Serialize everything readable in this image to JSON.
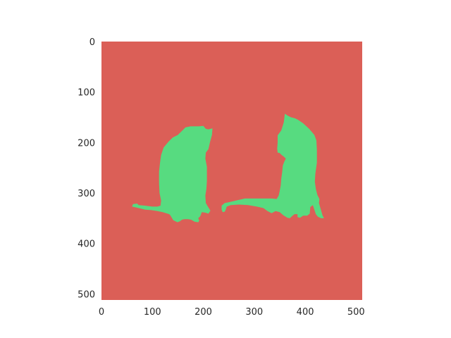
{
  "chart_data": {
    "type": "heatmap",
    "title": "",
    "xlabel": "",
    "ylabel": "",
    "xlim": [
      0,
      512
    ],
    "ylim": [
      512,
      0
    ],
    "x_ticks": [
      0,
      100,
      200,
      300,
      400,
      500
    ],
    "y_ticks": [
      0,
      100,
      200,
      300,
      400,
      500
    ],
    "grid": false,
    "legend": "none",
    "classes": [
      {
        "label": "background",
        "color": "#db5f57"
      },
      {
        "label": "cat",
        "color": "#57db80"
      }
    ],
    "regions": [
      {
        "class": "cat",
        "polygon": [
          [
            191,
            168
          ],
          [
            200,
            167
          ],
          [
            205,
            173
          ],
          [
            210,
            174
          ],
          [
            218,
            172
          ],
          [
            217,
            185
          ],
          [
            213,
            200
          ],
          [
            210,
            213
          ],
          [
            205,
            220
          ],
          [
            204,
            232
          ],
          [
            207,
            248
          ],
          [
            207,
            262
          ],
          [
            207,
            277
          ],
          [
            206,
            292
          ],
          [
            204,
            305
          ],
          [
            205,
            320
          ],
          [
            209,
            327
          ],
          [
            214,
            335
          ],
          [
            210,
            341
          ],
          [
            204,
            339
          ],
          [
            197,
            338
          ],
          [
            194,
            346
          ],
          [
            190,
            350
          ],
          [
            192,
            355
          ],
          [
            190,
            358
          ],
          [
            183,
            357
          ],
          [
            176,
            353
          ],
          [
            170,
            352
          ],
          [
            163,
            352
          ],
          [
            158,
            353
          ],
          [
            154,
            356
          ],
          [
            149,
            358
          ],
          [
            141,
            354
          ],
          [
            135,
            344
          ],
          [
            133,
            342
          ],
          [
            120,
            338
          ],
          [
            110,
            336
          ],
          [
            98,
            334
          ],
          [
            86,
            333
          ],
          [
            73,
            330
          ],
          [
            60,
            327
          ],
          [
            62,
            322
          ],
          [
            70,
            321
          ],
          [
            73,
            324
          ],
          [
            85,
            325
          ],
          [
            100,
            327
          ],
          [
            110,
            327
          ],
          [
            116,
            325
          ],
          [
            117,
            315
          ],
          [
            114,
            300
          ],
          [
            113,
            280
          ],
          [
            113,
            258
          ],
          [
            115,
            240
          ],
          [
            117,
            225
          ],
          [
            122,
            210
          ],
          [
            132,
            198
          ],
          [
            140,
            190
          ],
          [
            150,
            185
          ],
          [
            157,
            178
          ],
          [
            165,
            170
          ],
          [
            175,
            168
          ]
        ]
      },
      {
        "class": "cat",
        "polygon": [
          [
            360,
            143
          ],
          [
            366,
            147
          ],
          [
            372,
            150
          ],
          [
            380,
            152
          ],
          [
            386,
            155
          ],
          [
            396,
            162
          ],
          [
            408,
            173
          ],
          [
            418,
            185
          ],
          [
            422,
            196
          ],
          [
            423,
            215
          ],
          [
            423,
            240
          ],
          [
            420,
            262
          ],
          [
            419,
            278
          ],
          [
            421,
            292
          ],
          [
            424,
            304
          ],
          [
            428,
            312
          ],
          [
            427,
            320
          ],
          [
            430,
            330
          ],
          [
            434,
            344
          ],
          [
            437,
            350
          ],
          [
            431,
            350
          ],
          [
            425,
            347
          ],
          [
            421,
            342
          ],
          [
            418,
            333
          ],
          [
            415,
            324
          ],
          [
            410,
            328
          ],
          [
            409,
            341
          ],
          [
            404,
            345
          ],
          [
            396,
            345
          ],
          [
            390,
            349
          ],
          [
            385,
            348
          ],
          [
            385,
            342
          ],
          [
            379,
            342
          ],
          [
            374,
            346
          ],
          [
            370,
            350
          ],
          [
            365,
            349
          ],
          [
            357,
            344
          ],
          [
            350,
            338
          ],
          [
            342,
            336
          ],
          [
            334,
            340
          ],
          [
            326,
            336
          ],
          [
            318,
            330
          ],
          [
            305,
            327
          ],
          [
            288,
            324
          ],
          [
            270,
            323
          ],
          [
            254,
            324
          ],
          [
            246,
            327
          ],
          [
            244,
            333
          ],
          [
            242,
            337
          ],
          [
            238,
            338
          ],
          [
            236,
            333
          ],
          [
            236,
            325
          ],
          [
            242,
            320
          ],
          [
            252,
            318
          ],
          [
            268,
            314
          ],
          [
            282,
            311
          ],
          [
            300,
            311
          ],
          [
            318,
            311
          ],
          [
            334,
            311
          ],
          [
            344,
            312
          ],
          [
            348,
            305
          ],
          [
            350,
            296
          ],
          [
            352,
            285
          ],
          [
            353,
            272
          ],
          [
            355,
            258
          ],
          [
            356,
            246
          ],
          [
            359,
            238
          ],
          [
            362,
            232
          ],
          [
            358,
            228
          ],
          [
            354,
            225
          ],
          [
            350,
            221
          ],
          [
            346,
            220
          ],
          [
            345,
            212
          ],
          [
            346,
            200
          ],
          [
            346,
            186
          ],
          [
            353,
            176
          ],
          [
            358,
            160
          ]
        ]
      }
    ]
  }
}
